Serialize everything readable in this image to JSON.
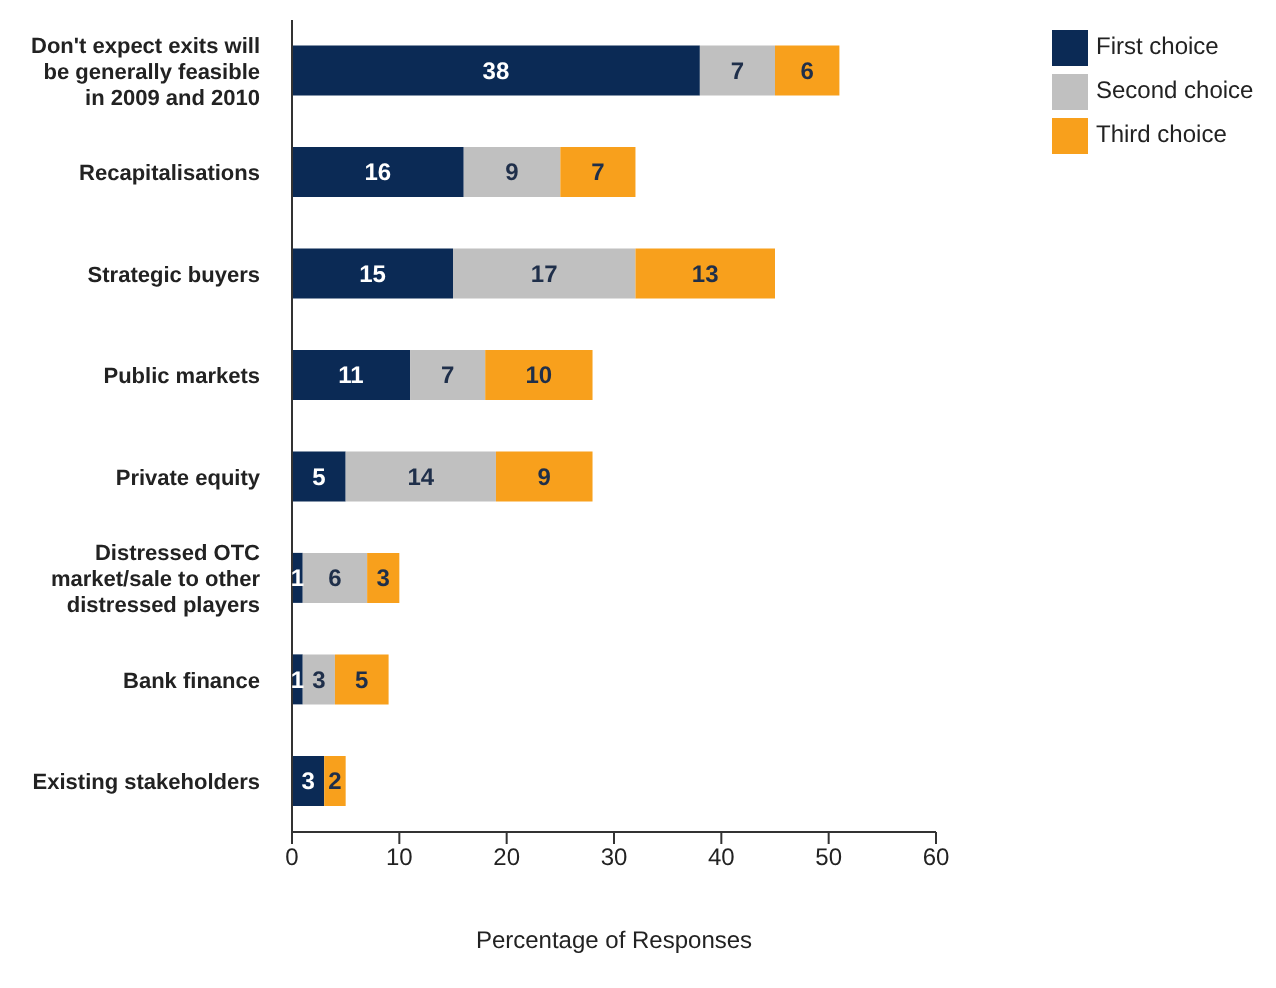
{
  "chart_data": {
    "type": "bar",
    "orientation": "horizontal",
    "stacked": true,
    "data_labels": true,
    "categories": [
      "Don't expect exits will be generally feasible in 2009 and 2010",
      "Recapitalisations",
      "Strategic buyers",
      "Public markets",
      "Private equity",
      "Distressed OTC market/sale to other distressed players",
      "Bank finance",
      "Existing stakeholders"
    ],
    "series": [
      {
        "name": "First choice",
        "color": "#0b2a55",
        "values": [
          38,
          16,
          15,
          11,
          5,
          1,
          1,
          3
        ]
      },
      {
        "name": "Second choice",
        "color": "#c0c0c0",
        "values": [
          7,
          9,
          17,
          7,
          14,
          6,
          3,
          null
        ]
      },
      {
        "name": "Third choice",
        "color": "#f8a01c",
        "values": [
          6,
          7,
          13,
          10,
          9,
          3,
          5,
          2
        ]
      }
    ],
    "xlim": [
      0,
      60
    ],
    "xticks": [
      0,
      10,
      20,
      30,
      40,
      50,
      60
    ],
    "xlabel": "Percentage of Responses",
    "grid": false,
    "legend": "top right"
  }
}
